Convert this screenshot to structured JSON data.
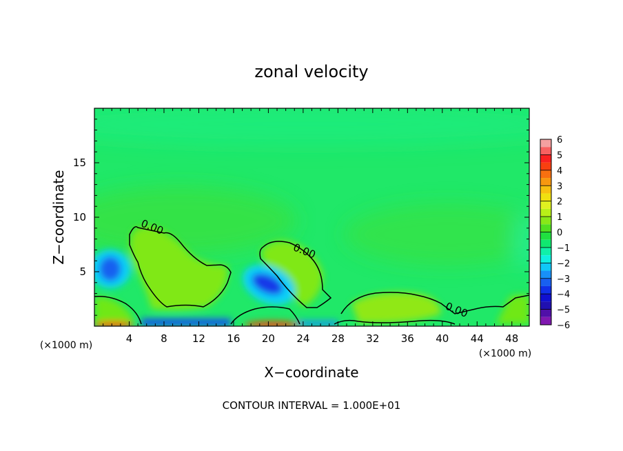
{
  "chart_data": {
    "type": "heatmap",
    "title": "zonal velocity",
    "xlabel": "X−coordinate",
    "ylabel": "Z−coordinate",
    "x_unit_left": "(×1000 m)",
    "x_unit_right": "(×1000 m)",
    "footer": "CONTOUR INTERVAL = 1.000E+01",
    "xlim": [
      0,
      50
    ],
    "ylim": [
      0,
      20
    ],
    "x_ticks": [
      4,
      8,
      12,
      16,
      20,
      24,
      28,
      32,
      36,
      40,
      44,
      48
    ],
    "y_ticks": [
      5,
      10,
      15
    ],
    "contour_labels": [
      {
        "text": "0.00",
        "x": 6.5,
        "y": 8.8
      },
      {
        "text": "0.00",
        "x": 24.0,
        "y": 6.6
      },
      {
        "text": "0.00",
        "x": 41.5,
        "y": 1.2
      }
    ],
    "colorbar": {
      "min": -6,
      "max": 6,
      "tick_labels": [
        "6",
        "5",
        "4",
        "3",
        "2",
        "1",
        "0",
        "−1",
        "−2",
        "−3",
        "−4",
        "−5",
        "−6"
      ],
      "levels": [
        {
          "from": 5.5,
          "to": 6.0,
          "color": "#f4a0a0"
        },
        {
          "from": 5.0,
          "to": 5.5,
          "color": "#f86060"
        },
        {
          "from": 4.5,
          "to": 5.0,
          "color": "#fa2020"
        },
        {
          "from": 4.0,
          "to": 4.5,
          "color": "#f84010"
        },
        {
          "from": 3.5,
          "to": 4.0,
          "color": "#f87010"
        },
        {
          "from": 3.0,
          "to": 3.5,
          "color": "#f89810"
        },
        {
          "from": 2.5,
          "to": 3.0,
          "color": "#f8c010"
        },
        {
          "from": 2.0,
          "to": 2.5,
          "color": "#f0e010"
        },
        {
          "from": 1.5,
          "to": 2.0,
          "color": "#e0f020"
        },
        {
          "from": 1.0,
          "to": 1.5,
          "color": "#b8f018"
        },
        {
          "from": 0.5,
          "to": 1.0,
          "color": "#88e818"
        },
        {
          "from": 0.0,
          "to": 0.5,
          "color": "#50e020"
        },
        {
          "from": -0.5,
          "to": 0.0,
          "color": "#20e040"
        },
        {
          "from": -1.0,
          "to": -0.5,
          "color": "#10e870"
        },
        {
          "from": -1.5,
          "to": -1.0,
          "color": "#10f0a8"
        },
        {
          "from": -2.0,
          "to": -1.5,
          "color": "#10f0e0"
        },
        {
          "from": -2.5,
          "to": -2.0,
          "color": "#10c8f8"
        },
        {
          "from": -3.0,
          "to": -2.5,
          "color": "#1890f8"
        },
        {
          "from": -3.5,
          "to": -3.0,
          "color": "#1860f0"
        },
        {
          "from": -4.0,
          "to": -3.5,
          "color": "#1030e8"
        },
        {
          "from": -4.5,
          "to": -4.0,
          "color": "#1010d0"
        },
        {
          "from": -5.0,
          "to": -4.5,
          "color": "#2010b0"
        },
        {
          "from": -5.5,
          "to": -5.0,
          "color": "#5010a8"
        },
        {
          "from": -6.0,
          "to": -5.5,
          "color": "#8018b0"
        }
      ]
    },
    "background_color": "#20e868",
    "features": [
      {
        "kind": "positive-region",
        "x_center": 9.5,
        "z_center": 5.0,
        "value": 1.0
      },
      {
        "kind": "positive-region",
        "x_center": 26.5,
        "z_center": 5.2,
        "value": 1.0
      },
      {
        "kind": "positive-region",
        "x_center": 35.0,
        "z_center": 1.8,
        "value": 1.2
      },
      {
        "kind": "negative-core",
        "x_center": 2.0,
        "z_center": 5.2,
        "value": -3.0
      },
      {
        "kind": "negative-core",
        "x_center": 20.0,
        "z_center": 3.6,
        "value": -4.0
      },
      {
        "kind": "surface-jet",
        "x_center": 3.0,
        "z_center": 0.1,
        "value": 5.0
      },
      {
        "kind": "surface-jet",
        "x_center": 20.5,
        "z_center": 0.1,
        "value": 5.0
      }
    ]
  }
}
